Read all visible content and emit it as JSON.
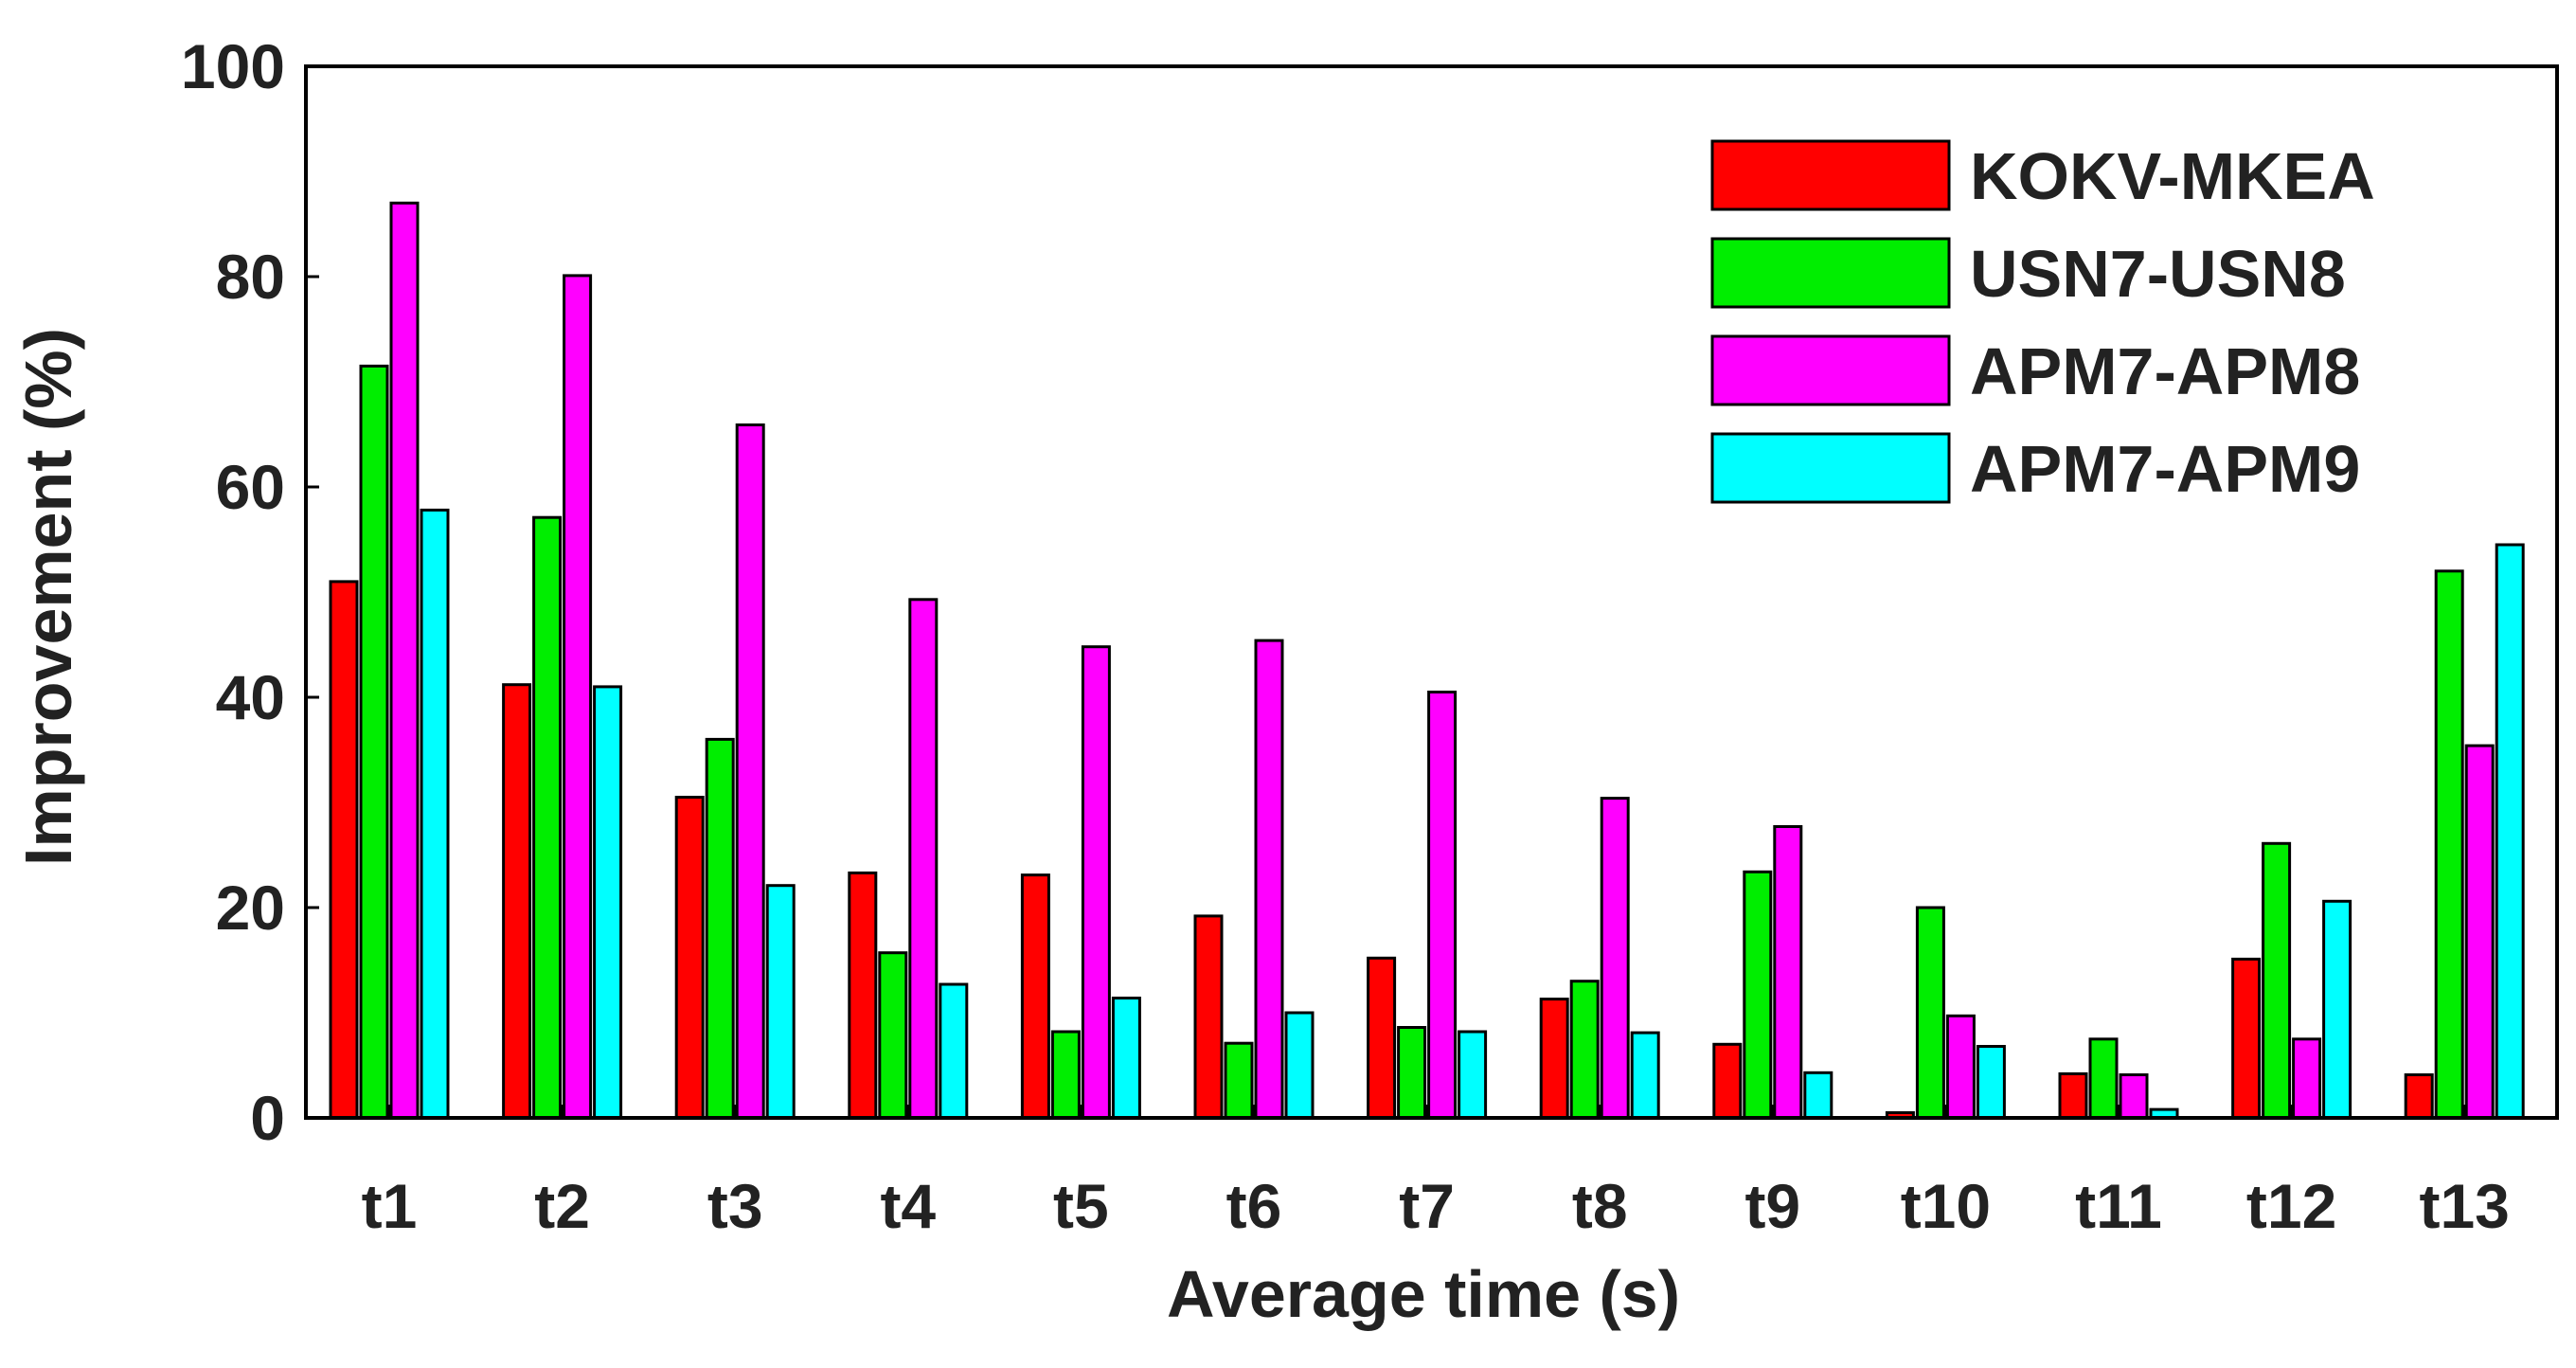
{
  "chart_data": {
    "type": "bar",
    "title": "",
    "xlabel": "Average time (s)",
    "ylabel": "Improvement (%)",
    "ylim": [
      0,
      100
    ],
    "yticks": [
      0,
      20,
      40,
      60,
      80,
      100
    ],
    "grid": false,
    "legend_position": "top-right",
    "categories": [
      "t1",
      "t2",
      "t3",
      "t4",
      "t5",
      "t6",
      "t7",
      "t8",
      "t9",
      "t10",
      "t11",
      "t12",
      "t13"
    ],
    "series": [
      {
        "name": "KOKV-MKEA",
        "color": "#ff0000",
        "values": [
          51.0,
          41.2,
          30.5,
          23.3,
          23.1,
          19.2,
          15.2,
          11.3,
          7.0,
          0.5,
          4.2,
          15.1,
          4.1
        ]
      },
      {
        "name": "USN7-USN8",
        "color": "#00ee00",
        "values": [
          71.5,
          57.1,
          36.0,
          15.7,
          8.2,
          7.1,
          8.6,
          13.0,
          23.4,
          20.0,
          7.5,
          26.1,
          52.0
        ]
      },
      {
        "name": "APM7-APM8",
        "color": "#ff00ff",
        "values": [
          87.0,
          80.1,
          65.9,
          49.3,
          44.8,
          45.4,
          40.5,
          30.4,
          27.7,
          9.7,
          4.1,
          7.5,
          35.4
        ]
      },
      {
        "name": "APM7-APM9",
        "color": "#00ffff",
        "values": [
          57.8,
          41.0,
          22.1,
          12.7,
          11.4,
          10.0,
          8.2,
          8.1,
          4.3,
          6.8,
          0.8,
          20.6,
          54.5
        ]
      }
    ]
  }
}
